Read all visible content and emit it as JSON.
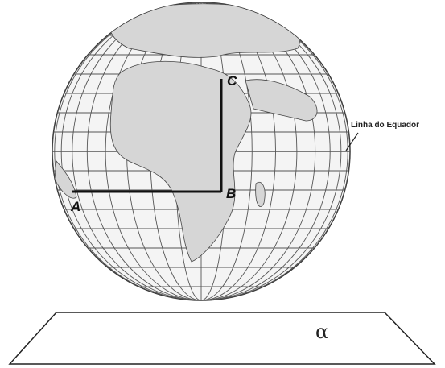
{
  "labels": {
    "point_a": "A",
    "point_b": "B",
    "point_c": "C",
    "equator": "Linha do Equador",
    "plane": "α"
  }
}
